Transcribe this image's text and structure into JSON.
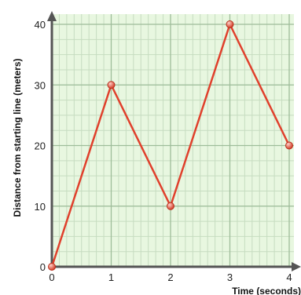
{
  "chart_data": {
    "type": "line",
    "title": "",
    "xlabel": "Time (seconds)",
    "ylabel": "Distance from starting line (meters)",
    "xlim": [
      0,
      4
    ],
    "ylim": [
      0,
      40
    ],
    "x_ticks": [
      0,
      1,
      2,
      3,
      4
    ],
    "y_ticks": [
      0,
      10,
      20,
      30,
      40
    ],
    "grid": true,
    "series": [
      {
        "x": [
          0,
          1,
          2,
          3,
          4
        ],
        "y": [
          0,
          30,
          10,
          40,
          20
        ]
      }
    ]
  },
  "colors": {
    "plot_background": "#e8f7e0",
    "grid_major": "#9ebd9a",
    "grid_minor": "#c6dcc0",
    "axis": "#555555",
    "series_line": "#e0402c",
    "point_fill": "#e8503a"
  }
}
